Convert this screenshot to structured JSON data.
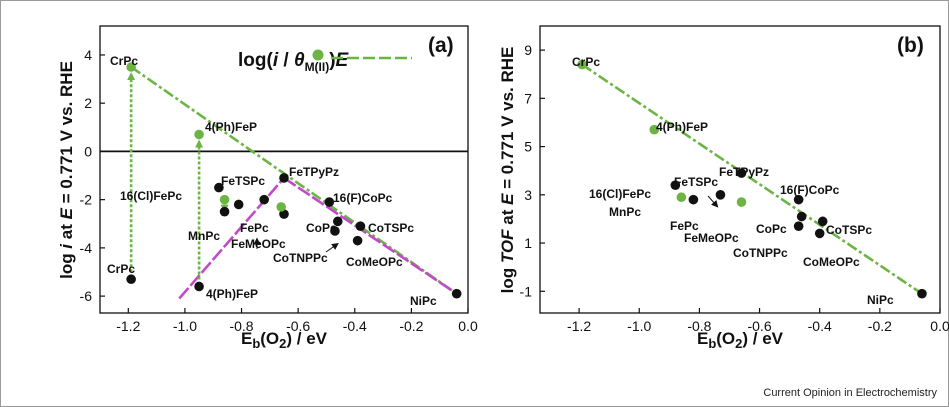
{
  "credit": "Current Opinion in Electrochemistry",
  "colors": {
    "point_black": "#111111",
    "point_green": "#6cb444",
    "line_green": "#6cb444",
    "line_magenta": "#c24ac8"
  },
  "chart_data": [
    {
      "panel": "(a)",
      "type": "scatter",
      "xlabel": "Eb(O2) / eV",
      "ylabel": "log i at E = 0.771 V vs. RHE",
      "legend_label": "log(i/θM(II))E",
      "legend_placement": "top-right",
      "xlim": [
        -1.3,
        0.0
      ],
      "ylim": [
        -6.7,
        5.2
      ],
      "xticks": [
        "-1.2",
        "-1.0",
        "-0.8",
        "-0.6",
        "-0.4",
        "-0.2",
        "0.0"
      ],
      "yticks": [
        "-6",
        "-4",
        "-2",
        "0",
        "2",
        "4"
      ],
      "x_tick_values": [
        -1.2,
        -1.0,
        -0.8,
        -0.6,
        -0.4,
        -0.2,
        0.0
      ],
      "y_tick_values": [
        -6,
        -4,
        -2,
        0,
        2,
        4
      ],
      "series": [
        {
          "kind": "black",
          "points": [
            {
              "label": "CrPc",
              "x": -1.19,
              "y": -5.3
            },
            {
              "label": "4(Ph)FeP",
              "x": -0.95,
              "y": -5.6
            },
            {
              "label": "16(Cl)FePc",
              "x": -0.88,
              "y": -1.5
            },
            {
              "label": "MnPc",
              "x": -0.86,
              "y": -2.5
            },
            {
              "label": "FeTSPc",
              "x": -0.81,
              "y": -2.2
            },
            {
              "label": "FePc",
              "x": -0.72,
              "y": -2.0
            },
            {
              "label": "FeTPyPz",
              "x": -0.65,
              "y": -1.1
            },
            {
              "label": "FeMeOPc",
              "x": -0.65,
              "y": -2.6
            },
            {
              "label": "16(F)CoPc",
              "x": -0.49,
              "y": -2.1
            },
            {
              "label": "CoPc",
              "x": -0.46,
              "y": -2.9
            },
            {
              "label": "CoTNPPc",
              "x": -0.47,
              "y": -3.3
            },
            {
              "label": "CoTSPc",
              "x": -0.38,
              "y": -3.1
            },
            {
              "label": "CoMeOPc",
              "x": -0.39,
              "y": -3.7
            },
            {
              "label": "NiPc",
              "x": -0.04,
              "y": -5.9
            }
          ]
        },
        {
          "kind": "green",
          "points": [
            {
              "label": "CrPc",
              "x": -1.19,
              "y": 3.5
            },
            {
              "label": "4(Ph)FeP",
              "x": -0.95,
              "y": 0.7
            },
            {
              "label": "MnPc",
              "x": -0.86,
              "y": -2.0
            },
            {
              "label": "FeMeOPc",
              "x": -0.66,
              "y": -2.3
            }
          ]
        }
      ],
      "trend_green": [
        [
          -1.19,
          3.5
        ],
        [
          -0.04,
          -5.9
        ]
      ],
      "trend_magenta": [
        [
          [
            -1.02,
            -6.1
          ],
          [
            -0.65,
            -1.1
          ]
        ],
        [
          [
            -0.65,
            -1.1
          ],
          [
            -0.04,
            -5.9
          ]
        ]
      ],
      "arrows": [
        [
          -1.19,
          -5.3,
          -1.19,
          3.5
        ],
        [
          -0.95,
          -5.6,
          -0.95,
          0.7
        ],
        [
          -0.86,
          -2.5,
          -0.86,
          -2.0
        ]
      ],
      "label_texts": {
        "CrPc_top": "CrPc",
        "CrPc_bottom": "CrPc",
        "FeP_top": "4(Ph)FeP",
        "FeP_bottom": "4(Ph)FeP",
        "ClFePc": "16(Cl)FePc",
        "FeTSPc": "FeTSPc",
        "MnPc": "MnPc",
        "FePc": "FePc",
        "FeTPyPz": "FeTPyPz",
        "FeMeOPc": "FeMeOPc",
        "FCoPc": "16(F)CoPc",
        "CoPc": "CoPc",
        "CoTSPc": "CoTSPc",
        "CoTNPPc": "CoTNPPc",
        "CoMeOPc": "CoMeOPc",
        "NiPc": "NiPc"
      }
    },
    {
      "panel": "(b)",
      "type": "scatter",
      "xlabel": "Eb(O2) / eV",
      "ylabel": "log TOF at E = 0.771 V vs. RHE",
      "xlim": [
        -1.33,
        0.0
      ],
      "ylim": [
        -1.9,
        10.0
      ],
      "xticks": [
        "-1.2",
        "-1.0",
        "-0.8",
        "-0.6",
        "-0.4",
        "-0.2",
        "0.0"
      ],
      "yticks": [
        "-1",
        "1",
        "3",
        "5",
        "7",
        "9"
      ],
      "x_tick_values": [
        -1.2,
        -1.0,
        -0.8,
        -0.6,
        -0.4,
        -0.2,
        0.0
      ],
      "y_tick_values": [
        -1,
        1,
        3,
        5,
        7,
        9
      ],
      "series": [
        {
          "kind": "black",
          "points": [
            {
              "label": "16(Cl)FePc",
              "x": -0.88,
              "y": 3.4
            },
            {
              "label": "FePc",
              "x": -0.82,
              "y": 2.8
            },
            {
              "label": "FeTSPc",
              "x": -0.73,
              "y": 3.0
            },
            {
              "label": "FeTPyPz",
              "x": -0.66,
              "y": 3.9
            },
            {
              "label": "16(F)CoPc",
              "x": -0.47,
              "y": 2.8
            },
            {
              "label": "CoPc",
              "x": -0.46,
              "y": 2.1
            },
            {
              "label": "CoTNPPc",
              "x": -0.47,
              "y": 1.7
            },
            {
              "label": "CoTSPc",
              "x": -0.39,
              "y": 1.9
            },
            {
              "label": "CoMeOPc",
              "x": -0.4,
              "y": 1.4
            },
            {
              "label": "NiPc",
              "x": -0.06,
              "y": -1.1
            }
          ]
        },
        {
          "kind": "green",
          "points": [
            {
              "label": "CrPc",
              "x": -1.19,
              "y": 8.4
            },
            {
              "label": "4(Ph)FeP",
              "x": -0.95,
              "y": 5.7
            },
            {
              "label": "MnPc",
              "x": -0.86,
              "y": 2.9
            },
            {
              "label": "FeMeOPc",
              "x": -0.66,
              "y": 2.7
            }
          ]
        }
      ],
      "trend_green": [
        [
          -1.19,
          8.4
        ],
        [
          -0.06,
          -1.1
        ]
      ],
      "label_texts": {
        "CrPc": "CrPc",
        "FeP": "4(Ph)FeP",
        "FeTPyPz": "FeTPyPz",
        "ClFePc": "16(Cl)FePc",
        "FeTSPc": "FeTSPc",
        "FCoPc": "16(F)CoPc",
        "MnPc": "MnPc",
        "FePc": "FePc",
        "FeMeOPc": "FeMeOPc",
        "CoPc": "CoPc",
        "CoTSPc": "CoTSPc",
        "CoTNPPc": "CoTNPPc",
        "CoMeOPc": "CoMeOPc",
        "NiPc": "NiPc"
      }
    }
  ]
}
